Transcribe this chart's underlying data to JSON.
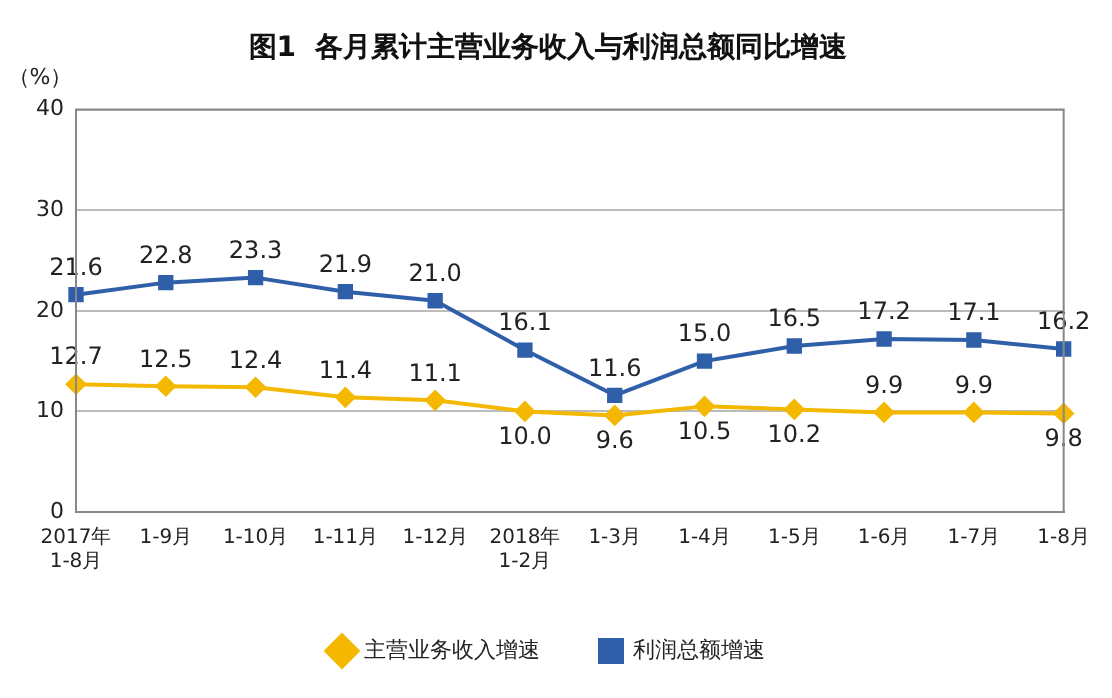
{
  "chart_data": {
    "type": "line",
    "title": "图1  各月累计主营业务收入与利润总额同比增速",
    "ylabel": "（%）",
    "categories": [
      "2017年\n1-8月",
      "1-9月",
      "1-10月",
      "1-11月",
      "1-12月",
      "2018年\n1-2月",
      "1-3月",
      "1-4月",
      "1-5月",
      "1-6月",
      "1-7月",
      "1-8月"
    ],
    "series": [
      {
        "name": "主营业务收入增速",
        "color": "#f5b800",
        "marker": "diamond",
        "values": [
          12.7,
          12.5,
          12.4,
          11.4,
          11.1,
          10.0,
          9.6,
          10.5,
          10.2,
          9.9,
          9.9,
          9.8
        ],
        "value_labels": [
          "12.7",
          "12.5",
          "12.4",
          "11.4",
          "11.1",
          "10.0",
          "9.6",
          "10.5",
          "10.2",
          "9.9",
          "9.9",
          "9.8"
        ]
      },
      {
        "name": "利润总额增速",
        "color": "#2e5fa8",
        "marker": "square",
        "values": [
          21.6,
          22.8,
          23.3,
          21.9,
          21.0,
          16.1,
          11.6,
          15.0,
          16.5,
          17.2,
          17.1,
          16.2
        ],
        "value_labels": [
          "21.6",
          "22.8",
          "23.3",
          "21.9",
          "21.0",
          "16.1",
          "11.6",
          "15.0",
          "16.5",
          "17.2",
          "17.1",
          "16.2"
        ]
      }
    ],
    "ylim": [
      0,
      40
    ],
    "yticks": [
      0,
      10,
      20,
      30,
      40
    ],
    "grid": "y",
    "legend": "bottom"
  }
}
